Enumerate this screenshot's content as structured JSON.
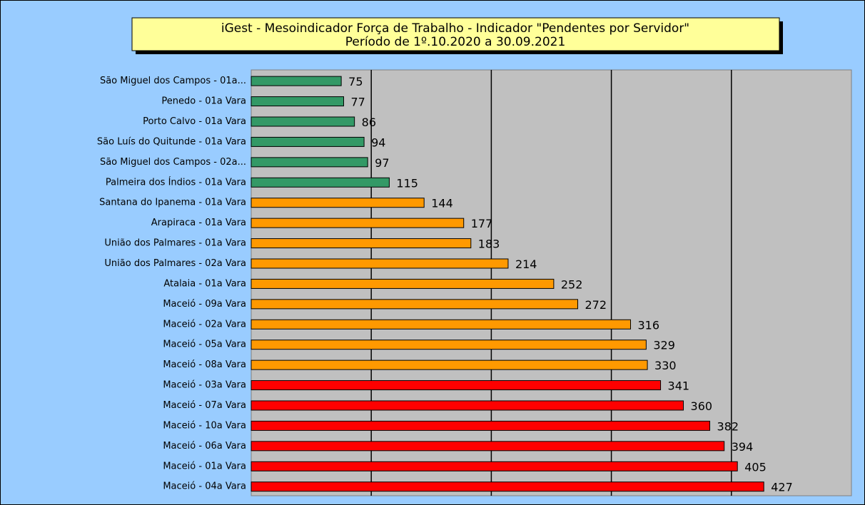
{
  "chart_data": {
    "type": "barh",
    "title": "iGest - Mesoindicador Força de Trabalho - Indicador \"Pendentes por Servidor\"",
    "subtitle": "Período de 1º.10.2020 a 30.09.2021",
    "categories": [
      "São Miguel dos Campos - 01a...",
      "Penedo - 01a Vara",
      "Porto Calvo - 01a Vara",
      "São Luís do Quitunde - 01a Vara",
      "São Miguel dos Campos - 02a...",
      "Palmeira dos Índios - 01a Vara",
      "Santana do Ipanema - 01a Vara",
      "Arapiraca - 01a Vara",
      "União dos Palmares - 01a Vara",
      "União dos Palmares - 02a Vara",
      "Atalaia - 01a Vara",
      "Maceió - 09a Vara",
      "Maceió - 02a Vara",
      "Maceió - 05a Vara",
      "Maceió - 08a Vara",
      "Maceió - 03a Vara",
      "Maceió - 07a Vara",
      "Maceió - 10a Vara",
      "Maceió - 06a Vara",
      "Maceió - 01a Vara",
      "Maceió - 04a Vara"
    ],
    "values": [
      75,
      77,
      86,
      94,
      97,
      115,
      144,
      177,
      183,
      214,
      252,
      272,
      316,
      329,
      330,
      341,
      360,
      382,
      394,
      405,
      427
    ],
    "colors": [
      "#339966",
      "#339966",
      "#339966",
      "#339966",
      "#339966",
      "#339966",
      "#ff9900",
      "#ff9900",
      "#ff9900",
      "#ff9900",
      "#ff9900",
      "#ff9900",
      "#ff9900",
      "#ff9900",
      "#ff9900",
      "#ff0000",
      "#ff0000",
      "#ff0000",
      "#ff0000",
      "#ff0000",
      "#ff0000"
    ],
    "xlim": [
      0,
      500
    ],
    "xticks": [
      100,
      200,
      300,
      400
    ],
    "grid": true
  }
}
